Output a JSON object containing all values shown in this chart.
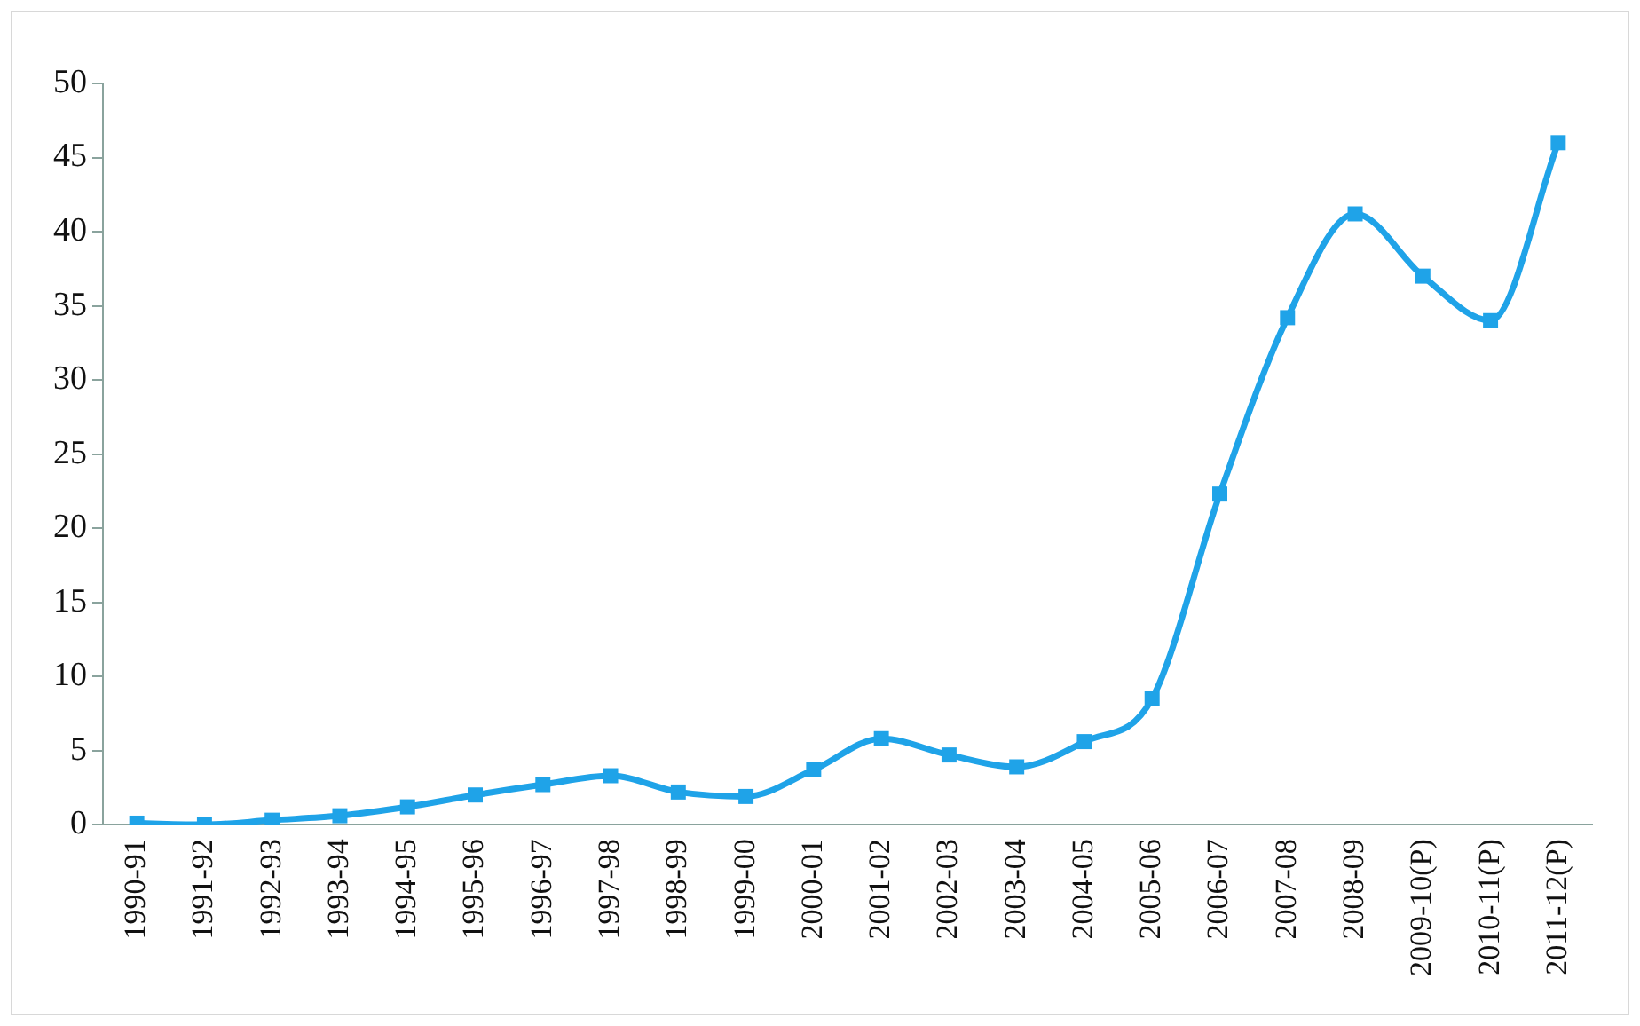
{
  "chart_data": {
    "type": "line",
    "categories": [
      "1990-91",
      "1991-92",
      "1992-93",
      "1993-94",
      "1994-95",
      "1995-96",
      "1996-97",
      "1997-98",
      "1998-99",
      "1999-00",
      "2000-01",
      "2001-02",
      "2002-03",
      "2003-04",
      "2004-05",
      "2005-06",
      "2006-07",
      "2007-08",
      "2008-09",
      "2009-10(P)",
      "2010-11(P)",
      "2011-12(P)"
    ],
    "series": [
      {
        "color": "#1fa3e8",
        "values": [
          0.1,
          0.0,
          0.3,
          0.6,
          1.2,
          2.0,
          2.7,
          3.3,
          2.2,
          1.9,
          3.7,
          5.8,
          4.7,
          3.9,
          5.6,
          8.5,
          22.3,
          34.2,
          41.2,
          37.0,
          34.0,
          46.0
        ]
      }
    ],
    "ylim": [
      0,
      50
    ],
    "yticks": [
      0,
      5,
      10,
      15,
      20,
      25,
      30,
      35,
      40,
      45,
      50
    ],
    "grid": false,
    "legend": false,
    "marker": "square",
    "line_style": "solid"
  }
}
